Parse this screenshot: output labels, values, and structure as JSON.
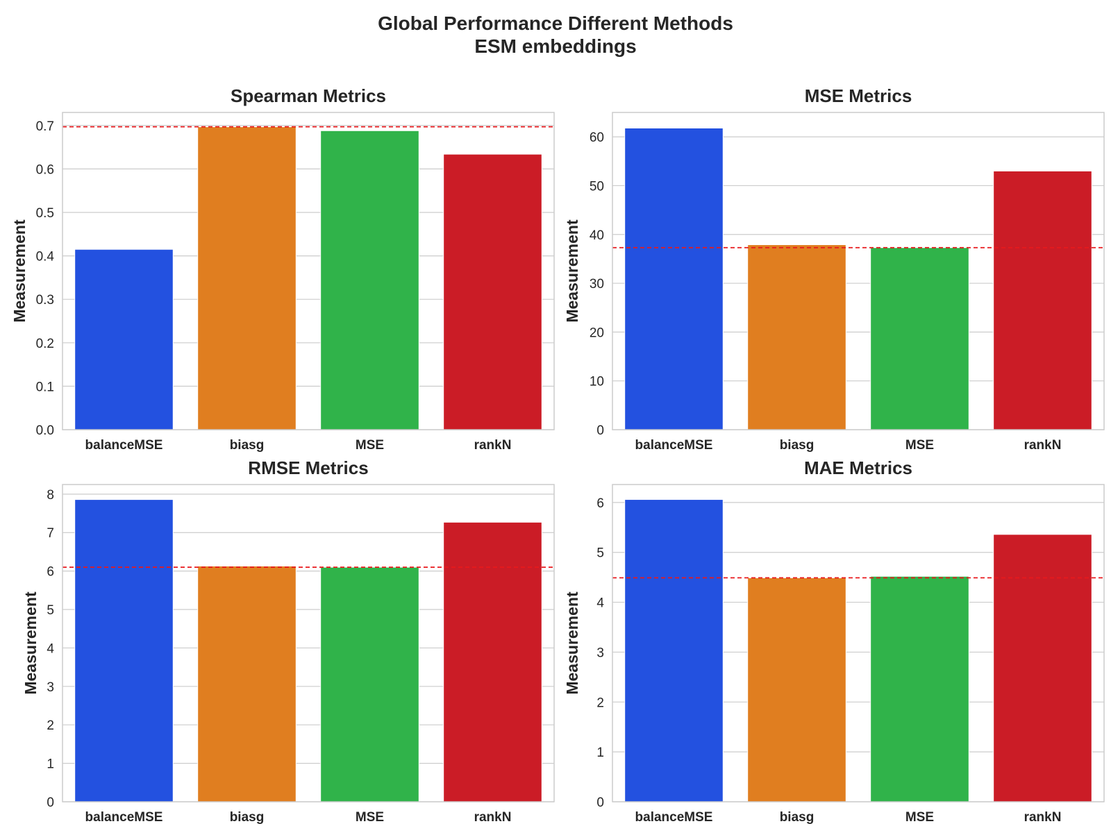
{
  "suptitle": {
    "line1": "Global Performance Different Methods",
    "line2": "ESM embeddings"
  },
  "colors": {
    "balanceMSE": "#2351e0",
    "biasg": "#e07e20",
    "MSE": "#30b34a",
    "rankN": "#cb1c26",
    "reference_line": "#e8191c",
    "grid": "#cccccc",
    "frame": "#cccccc"
  },
  "chart_data": [
    {
      "type": "bar",
      "title": "Spearman Metrics",
      "xlabel": "",
      "ylabel": "Measurement",
      "categories": [
        "balanceMSE",
        "biasg",
        "MSE",
        "rankN"
      ],
      "values": [
        0.415,
        0.697,
        0.688,
        0.634
      ],
      "reference_line": 0.697,
      "ylim": [
        0,
        0.73
      ],
      "yticks": [
        "0.0",
        "0.1",
        "0.2",
        "0.3",
        "0.4",
        "0.5",
        "0.6",
        "0.7"
      ],
      "ytick_values": [
        0,
        0.1,
        0.2,
        0.3,
        0.4,
        0.5,
        0.6,
        0.7
      ],
      "grid": true
    },
    {
      "type": "bar",
      "title": "MSE Metrics",
      "xlabel": "",
      "ylabel": "Measurement",
      "categories": [
        "balanceMSE",
        "biasg",
        "MSE",
        "rankN"
      ],
      "values": [
        61.8,
        37.9,
        37.3,
        53.0
      ],
      "reference_line": 37.3,
      "ylim": [
        0,
        65
      ],
      "yticks": [
        "0",
        "10",
        "20",
        "30",
        "40",
        "50",
        "60"
      ],
      "ytick_values": [
        0,
        10,
        20,
        30,
        40,
        50,
        60
      ],
      "grid": true
    },
    {
      "type": "bar",
      "title": "RMSE Metrics",
      "xlabel": "",
      "ylabel": "Measurement",
      "categories": [
        "balanceMSE",
        "biasg",
        "MSE",
        "rankN"
      ],
      "values": [
        7.86,
        6.13,
        6.1,
        7.27
      ],
      "reference_line": 6.1,
      "ylim": [
        0,
        8.25
      ],
      "yticks": [
        "0",
        "1",
        "2",
        "3",
        "4",
        "5",
        "6",
        "7",
        "8"
      ],
      "ytick_values": [
        0,
        1,
        2,
        3,
        4,
        5,
        6,
        7,
        8
      ],
      "grid": true
    },
    {
      "type": "bar",
      "title": "MAE Metrics",
      "xlabel": "",
      "ylabel": "Measurement",
      "categories": [
        "balanceMSE",
        "biasg",
        "MSE",
        "rankN"
      ],
      "values": [
        6.06,
        4.49,
        4.52,
        5.36
      ],
      "reference_line": 4.49,
      "ylim": [
        0,
        6.36
      ],
      "yticks": [
        "0",
        "1",
        "2",
        "3",
        "4",
        "5",
        "6"
      ],
      "ytick_values": [
        0,
        1,
        2,
        3,
        4,
        5,
        6
      ],
      "grid": true
    }
  ]
}
